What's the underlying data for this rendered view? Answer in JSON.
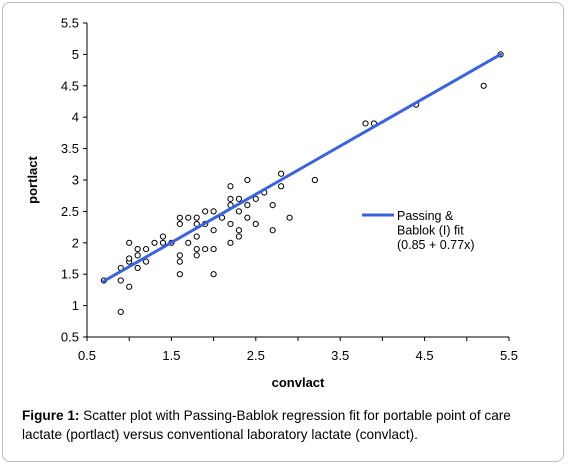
{
  "caption": {
    "label": "Figure 1:",
    "text": " Scatter plot with Passing-Bablok regression fit for portable point of care lactate (portlact) versus conventional laboratory lactate (convlact)."
  },
  "colors": {
    "fit_line": "#3a63dc",
    "marker": "#000000"
  },
  "chart_data": {
    "type": "scatter",
    "xlabel": "convlact",
    "ylabel": "portlact",
    "xlim": [
      0.5,
      5.5
    ],
    "ylim": [
      0.5,
      5.5
    ],
    "xticks": [
      "0.5",
      "1.5",
      "2.5",
      "3.5",
      "4.5",
      "5.5"
    ],
    "yticks": [
      "0.5",
      "1",
      "1.5",
      "2",
      "2.5",
      "3",
      "3.5",
      "4",
      "4.5",
      "5",
      "5.5"
    ],
    "grid": false,
    "legend_position": "right",
    "series": [
      {
        "marker": "open-circle",
        "points": [
          [
            0.7,
            1.4
          ],
          [
            0.9,
            0.9
          ],
          [
            0.9,
            1.6
          ],
          [
            0.9,
            1.4
          ],
          [
            1.0,
            1.3
          ],
          [
            1.0,
            1.7
          ],
          [
            1.0,
            1.75
          ],
          [
            1.0,
            2.0
          ],
          [
            1.1,
            1.6
          ],
          [
            1.1,
            1.8
          ],
          [
            1.1,
            1.9
          ],
          [
            1.2,
            1.7
          ],
          [
            1.2,
            1.9
          ],
          [
            1.3,
            2.0
          ],
          [
            1.4,
            2.0
          ],
          [
            1.4,
            2.1
          ],
          [
            1.5,
            2.0
          ],
          [
            1.6,
            1.5
          ],
          [
            1.6,
            1.7
          ],
          [
            1.6,
            1.8
          ],
          [
            1.6,
            2.3
          ],
          [
            1.6,
            2.4
          ],
          [
            1.7,
            2.0
          ],
          [
            1.7,
            2.4
          ],
          [
            1.8,
            1.8
          ],
          [
            1.8,
            1.9
          ],
          [
            1.8,
            2.1
          ],
          [
            1.8,
            2.3
          ],
          [
            1.8,
            2.4
          ],
          [
            1.9,
            1.9
          ],
          [
            1.9,
            2.3
          ],
          [
            1.9,
            2.5
          ],
          [
            2.0,
            1.5
          ],
          [
            2.0,
            1.9
          ],
          [
            2.0,
            2.2
          ],
          [
            2.0,
            2.5
          ],
          [
            2.1,
            2.4
          ],
          [
            2.2,
            2.0
          ],
          [
            2.2,
            2.3
          ],
          [
            2.2,
            2.6
          ],
          [
            2.2,
            2.7
          ],
          [
            2.2,
            2.9
          ],
          [
            2.3,
            2.1
          ],
          [
            2.3,
            2.2
          ],
          [
            2.3,
            2.5
          ],
          [
            2.3,
            2.7
          ],
          [
            2.4,
            2.4
          ],
          [
            2.4,
            2.6
          ],
          [
            2.4,
            3.0
          ],
          [
            2.5,
            2.7
          ],
          [
            2.5,
            2.3
          ],
          [
            2.6,
            2.8
          ],
          [
            2.7,
            2.2
          ],
          [
            2.7,
            2.6
          ],
          [
            2.8,
            2.9
          ],
          [
            2.8,
            3.1
          ],
          [
            2.9,
            2.4
          ],
          [
            3.2,
            3.0
          ],
          [
            3.8,
            3.9
          ],
          [
            3.9,
            3.9
          ],
          [
            4.4,
            4.2
          ],
          [
            5.2,
            4.5
          ],
          [
            5.4,
            5.0
          ]
        ]
      },
      {
        "name": "Passing & Bablok (I) fit (0.85 + 0.77x)",
        "legend_lines": [
          "Passing &",
          "Bablok (I) fit",
          "(0.85 + 0.77x)"
        ],
        "line": [
          [
            0.7,
            1.39
          ],
          [
            5.4,
            5.0
          ]
        ]
      }
    ]
  }
}
